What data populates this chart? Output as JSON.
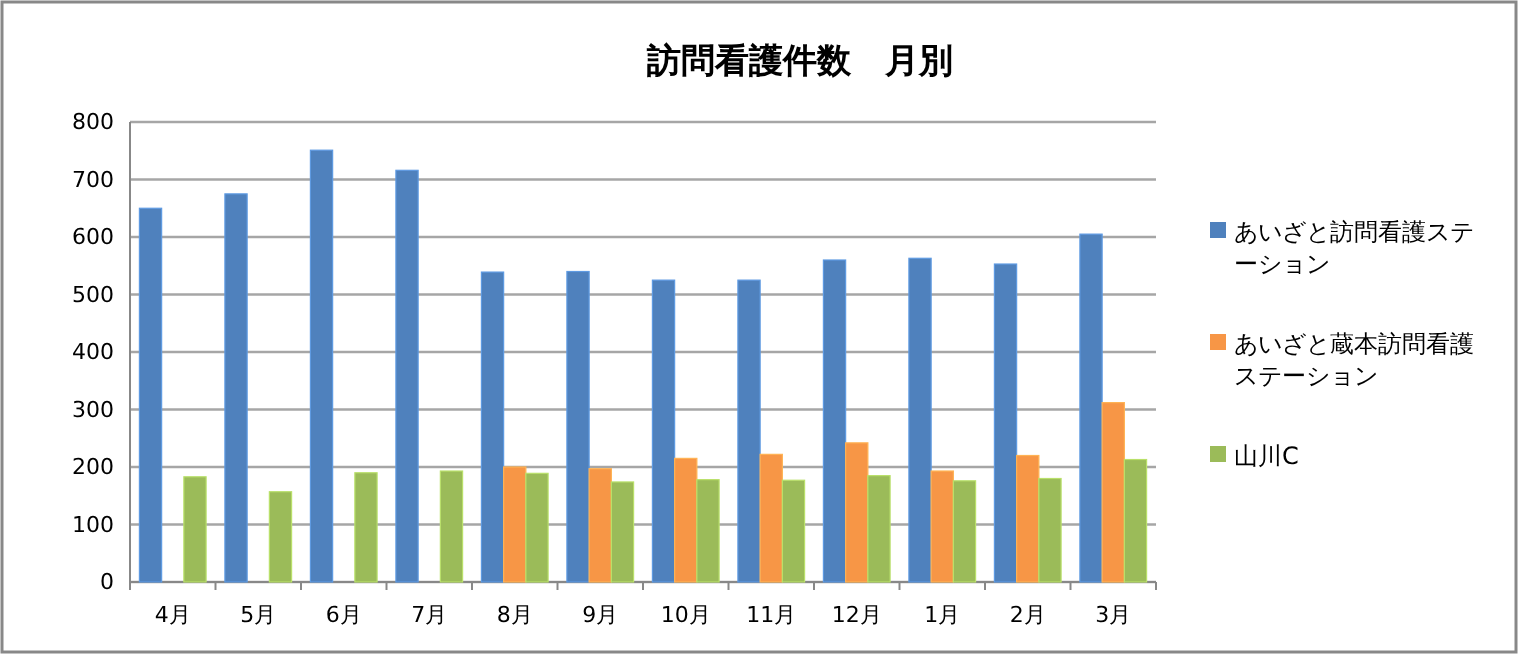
{
  "chart_data": {
    "type": "bar",
    "title": "訪問看護件数　月別",
    "categories": [
      "4月",
      "5月",
      "6月",
      "7月",
      "8月",
      "9月",
      "10月",
      "11月",
      "12月",
      "1月",
      "2月",
      "3月"
    ],
    "series": [
      {
        "name": "あいざと訪問看護ステーション",
        "color": "#4f81bd",
        "values": [
          650,
          675,
          751,
          716,
          539,
          540,
          525,
          525,
          560,
          563,
          553,
          605
        ]
      },
      {
        "name": "あいざと蔵本訪問看護ステーション",
        "color": "#f79646",
        "values": [
          null,
          null,
          null,
          null,
          200,
          197,
          215,
          222,
          242,
          193,
          220,
          312
        ]
      },
      {
        "name": "山川C",
        "color": "#9bbb59",
        "values": [
          183,
          157,
          190,
          193,
          189,
          174,
          178,
          177,
          185,
          176,
          180,
          213
        ]
      }
    ],
    "ylim": [
      0,
      800
    ],
    "yticks": [
      0,
      100,
      200,
      300,
      400,
      500,
      600,
      700,
      800
    ],
    "grid": "y",
    "legend": "right"
  }
}
